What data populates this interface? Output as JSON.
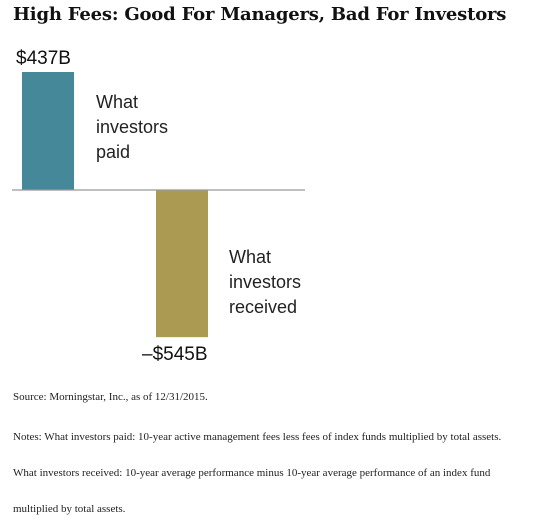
{
  "title": "High Fees: Good For Managers, Bad For Investors",
  "chart_data": {
    "type": "bar",
    "categories": [
      "What investors paid",
      "What investors received"
    ],
    "category_lines": [
      [
        "What",
        "investors",
        "paid"
      ],
      [
        "What",
        "investors",
        "received"
      ]
    ],
    "values": [
      437,
      -545
    ],
    "data_labels": [
      "$437B",
      "–$545B"
    ],
    "unit": "billion USD",
    "colors": [
      "#44889a",
      "#aa9a52"
    ],
    "title": "High Fees: Good For Managers, Bad For Investors",
    "xlabel": "",
    "ylabel": "",
    "grid": false,
    "legend": "none"
  },
  "source": "Source: Morningstar, Inc., as of 12/31/2015.",
  "notes": [
    "Notes: What investors paid: 10-year active management fees less fees of index funds multiplied by total assets.",
    "What investors received: 10-year average performance minus 10-year average performance of an index fund",
    "multiplied by total assets."
  ]
}
